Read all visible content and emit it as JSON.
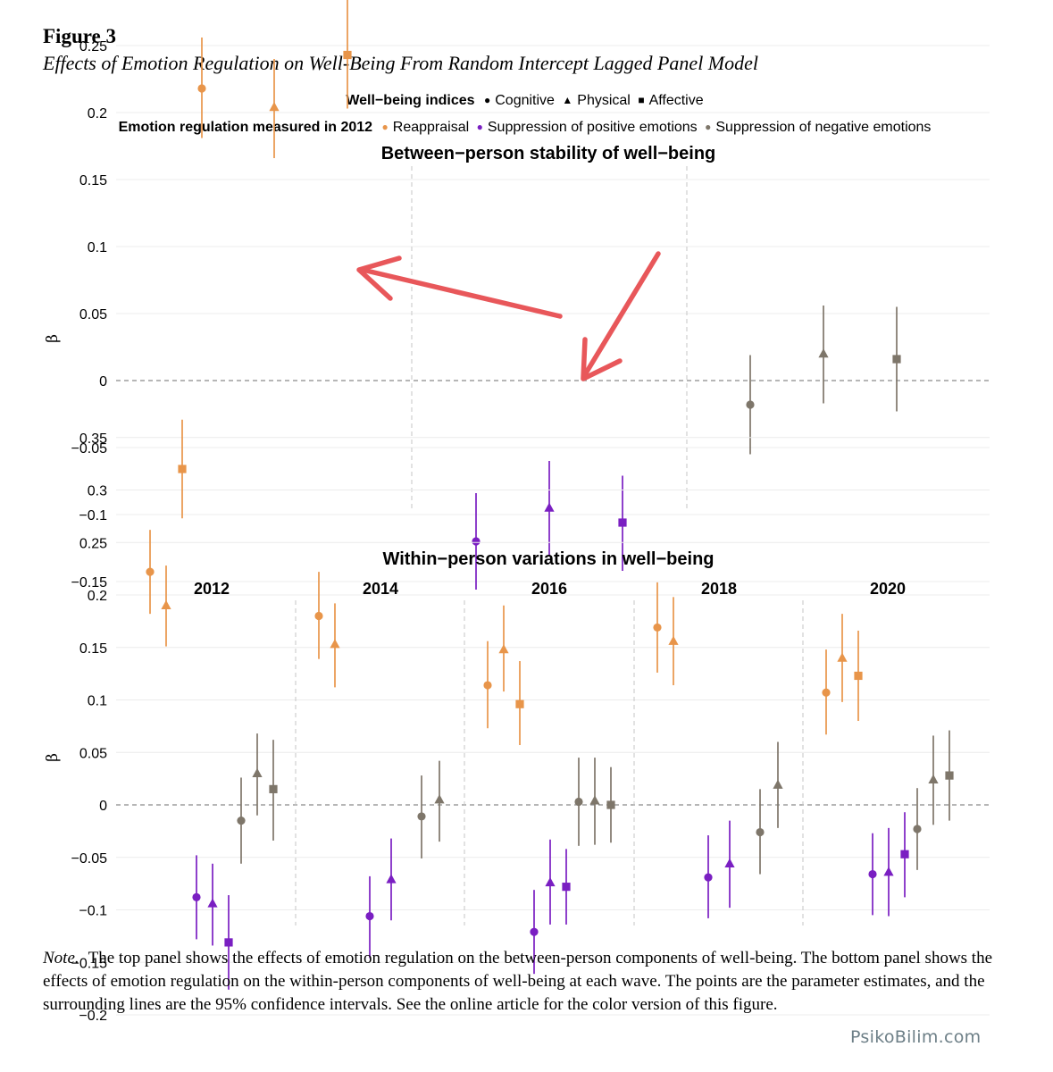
{
  "figure": {
    "label": "Figure 3",
    "caption": "Effects of Emotion Regulation on Well-Being From Random Intercept Lagged Panel Model"
  },
  "legend": {
    "indices_title": "Well−being indices",
    "indices": [
      {
        "label": "Cognitive",
        "shape": "circle"
      },
      {
        "label": "Physical",
        "shape": "triangle"
      },
      {
        "label": "Affective",
        "shape": "square"
      }
    ],
    "er_title": "Emotion regulation measured in 2012",
    "er": [
      {
        "label": "Reappraisal",
        "color": "#E8954A"
      },
      {
        "label": "Suppression of positive emotions",
        "color": "#7A1FC2"
      },
      {
        "label": "Suppression of negative emotions",
        "color": "#7E766A"
      }
    ]
  },
  "colors": {
    "reappraisal": "#E8954A",
    "suppression_positive": "#7A1FC2",
    "suppression_negative": "#7E766A",
    "annotation_arrow": "#E8575A"
  },
  "chart_data": [
    {
      "type": "scatter",
      "title": "Between−person stability of well−being",
      "ylabel": "β",
      "ylim": [
        -0.18,
        0.31
      ],
      "yticks": [
        -0.15,
        -0.1,
        -0.05,
        0,
        0.05,
        0.1,
        0.15,
        0.2,
        0.25,
        0.3
      ],
      "ytick_labels": [
        "−0.15",
        "−0.1",
        "−0.05",
        "0",
        "0.05",
        "0.1",
        "0.15",
        "0.2",
        "0.25",
        "0.3"
      ],
      "reference_line": 0,
      "groups": [
        "Reappraisal",
        "Suppression of positive emotions",
        "Suppression of negative emotions"
      ],
      "series": [
        {
          "name": "Reappraisal",
          "points": [
            {
              "index": "Cognitive",
              "estimate": 0.218,
              "lower": 0.181,
              "upper": 0.256
            },
            {
              "index": "Physical",
              "estimate": 0.204,
              "lower": 0.166,
              "upper": 0.24
            },
            {
              "index": "Affective",
              "estimate": 0.243,
              "lower": 0.203,
              "upper": 0.284
            }
          ]
        },
        {
          "name": "Suppression of positive emotions",
          "points": [
            {
              "index": "Cognitive",
              "estimate": -0.12,
              "lower": -0.156,
              "upper": -0.084
            },
            {
              "index": "Physical",
              "estimate": -0.095,
              "lower": -0.131,
              "upper": -0.06
            },
            {
              "index": "Affective",
              "estimate": -0.106,
              "lower": -0.142,
              "upper": -0.071
            }
          ]
        },
        {
          "name": "Suppression of negative emotions",
          "points": [
            {
              "index": "Cognitive",
              "estimate": -0.018,
              "lower": -0.055,
              "upper": 0.019
            },
            {
              "index": "Physical",
              "estimate": 0.02,
              "lower": -0.017,
              "upper": 0.056
            },
            {
              "index": "Affective",
              "estimate": 0.016,
              "lower": -0.023,
              "upper": 0.055
            }
          ]
        }
      ]
    },
    {
      "type": "scatter",
      "title": "Within−person variations in well−being",
      "ylabel": "β",
      "ylim": [
        -0.215,
        0.375
      ],
      "yticks": [
        -0.2,
        -0.15,
        -0.1,
        -0.05,
        0,
        0.05,
        0.1,
        0.15,
        0.2,
        0.25,
        0.3,
        0.35
      ],
      "ytick_labels": [
        "−0.2",
        "−0.15",
        "−0.1",
        "−0.05",
        "0",
        "0.05",
        "0.1",
        "0.15",
        "0.2",
        "0.25",
        "0.3",
        "0.35"
      ],
      "reference_line": 0,
      "facets": [
        {
          "label": "2012",
          "series": [
            {
              "name": "Reappraisal",
              "points": [
                {
                  "index": "Cognitive",
                  "estimate": 0.222,
                  "lower": 0.182,
                  "upper": 0.262
                },
                {
                  "index": "Physical",
                  "estimate": 0.19,
                  "lower": 0.151,
                  "upper": 0.228
                },
                {
                  "index": "Affective",
                  "estimate": 0.32,
                  "lower": 0.273,
                  "upper": 0.367
                }
              ]
            },
            {
              "name": "Suppression of positive emotions",
              "points": [
                {
                  "index": "Cognitive",
                  "estimate": -0.088,
                  "lower": -0.128,
                  "upper": -0.048
                },
                {
                  "index": "Physical",
                  "estimate": -0.094,
                  "lower": -0.134,
                  "upper": -0.056
                },
                {
                  "index": "Affective",
                  "estimate": -0.131,
                  "lower": -0.176,
                  "upper": -0.086
                }
              ]
            },
            {
              "name": "Suppression of negative emotions",
              "points": [
                {
                  "index": "Cognitive",
                  "estimate": -0.015,
                  "lower": -0.056,
                  "upper": 0.026
                },
                {
                  "index": "Physical",
                  "estimate": 0.03,
                  "lower": -0.01,
                  "upper": 0.068
                },
                {
                  "index": "Affective",
                  "estimate": 0.015,
                  "lower": -0.034,
                  "upper": 0.062
                }
              ]
            }
          ]
        },
        {
          "label": "2014",
          "series": [
            {
              "name": "Reappraisal",
              "points": [
                {
                  "index": "Cognitive",
                  "estimate": 0.18,
                  "lower": 0.139,
                  "upper": 0.222
                },
                {
                  "index": "Physical",
                  "estimate": 0.153,
                  "lower": 0.112,
                  "upper": 0.192
                }
              ]
            },
            {
              "name": "Suppression of positive emotions",
              "points": [
                {
                  "index": "Cognitive",
                  "estimate": -0.106,
                  "lower": -0.146,
                  "upper": -0.068
                },
                {
                  "index": "Physical",
                  "estimate": -0.071,
                  "lower": -0.11,
                  "upper": -0.032
                }
              ]
            },
            {
              "name": "Suppression of negative emotions",
              "points": [
                {
                  "index": "Cognitive",
                  "estimate": -0.011,
                  "lower": -0.051,
                  "upper": 0.028
                },
                {
                  "index": "Physical",
                  "estimate": 0.005,
                  "lower": -0.035,
                  "upper": 0.042
                }
              ]
            }
          ]
        },
        {
          "label": "2016",
          "series": [
            {
              "name": "Reappraisal",
              "points": [
                {
                  "index": "Cognitive",
                  "estimate": 0.114,
                  "lower": 0.073,
                  "upper": 0.156
                },
                {
                  "index": "Physical",
                  "estimate": 0.148,
                  "lower": 0.108,
                  "upper": 0.19
                },
                {
                  "index": "Affective",
                  "estimate": 0.096,
                  "lower": 0.057,
                  "upper": 0.137
                }
              ]
            },
            {
              "name": "Suppression of positive emotions",
              "points": [
                {
                  "index": "Cognitive",
                  "estimate": -0.121,
                  "lower": -0.161,
                  "upper": -0.081
                },
                {
                  "index": "Physical",
                  "estimate": -0.074,
                  "lower": -0.114,
                  "upper": -0.033
                },
                {
                  "index": "Affective",
                  "estimate": -0.078,
                  "lower": -0.114,
                  "upper": -0.042
                }
              ]
            },
            {
              "name": "Suppression of negative emotions",
              "points": [
                {
                  "index": "Cognitive",
                  "estimate": 0.003,
                  "lower": -0.039,
                  "upper": 0.045
                },
                {
                  "index": "Physical",
                  "estimate": 0.004,
                  "lower": -0.038,
                  "upper": 0.045
                },
                {
                  "index": "Affective",
                  "estimate": 0.0,
                  "lower": -0.036,
                  "upper": 0.036
                }
              ]
            }
          ]
        },
        {
          "label": "2018",
          "series": [
            {
              "name": "Reappraisal",
              "points": [
                {
                  "index": "Cognitive",
                  "estimate": 0.169,
                  "lower": 0.126,
                  "upper": 0.212
                },
                {
                  "index": "Physical",
                  "estimate": 0.156,
                  "lower": 0.114,
                  "upper": 0.198
                }
              ]
            },
            {
              "name": "Suppression of positive emotions",
              "points": [
                {
                  "index": "Cognitive",
                  "estimate": -0.069,
                  "lower": -0.108,
                  "upper": -0.029
                },
                {
                  "index": "Physical",
                  "estimate": -0.056,
                  "lower": -0.098,
                  "upper": -0.015
                }
              ]
            },
            {
              "name": "Suppression of negative emotions",
              "points": [
                {
                  "index": "Cognitive",
                  "estimate": -0.026,
                  "lower": -0.066,
                  "upper": 0.015
                },
                {
                  "index": "Physical",
                  "estimate": 0.019,
                  "lower": -0.022,
                  "upper": 0.06
                }
              ]
            }
          ]
        },
        {
          "label": "2020",
          "series": [
            {
              "name": "Reappraisal",
              "points": [
                {
                  "index": "Cognitive",
                  "estimate": 0.107,
                  "lower": 0.067,
                  "upper": 0.148
                },
                {
                  "index": "Physical",
                  "estimate": 0.14,
                  "lower": 0.098,
                  "upper": 0.182
                },
                {
                  "index": "Affective",
                  "estimate": 0.123,
                  "lower": 0.08,
                  "upper": 0.166
                }
              ]
            },
            {
              "name": "Suppression of positive emotions",
              "points": [
                {
                  "index": "Cognitive",
                  "estimate": -0.066,
                  "lower": -0.105,
                  "upper": -0.027
                },
                {
                  "index": "Physical",
                  "estimate": -0.064,
                  "lower": -0.106,
                  "upper": -0.022
                },
                {
                  "index": "Affective",
                  "estimate": -0.047,
                  "lower": -0.088,
                  "upper": -0.007
                }
              ]
            },
            {
              "name": "Suppression of negative emotions",
              "points": [
                {
                  "index": "Cognitive",
                  "estimate": -0.023,
                  "lower": -0.062,
                  "upper": 0.016
                },
                {
                  "index": "Physical",
                  "estimate": 0.024,
                  "lower": -0.019,
                  "upper": 0.066
                },
                {
                  "index": "Affective",
                  "estimate": 0.028,
                  "lower": -0.015,
                  "upper": 0.071
                }
              ]
            }
          ]
        }
      ]
    }
  ],
  "note": {
    "lead": "Note.",
    "text": "The top panel shows the effects of emotion regulation on the between-person components of well-being. The bottom panel shows the effects of emotion regulation on the within-person components of well-being at each wave. The points are the parameter estimates, and the surrounding lines are the 95% confidence intervals. See the online article for the color version of this figure."
  },
  "watermark": "PsikoBilim.com"
}
